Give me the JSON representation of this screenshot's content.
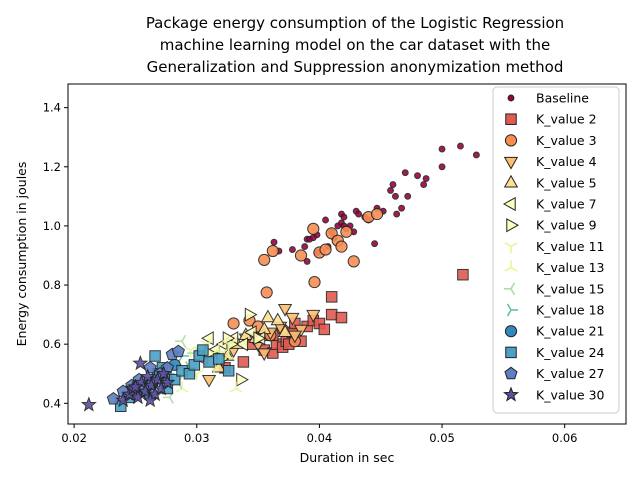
{
  "chart_data": {
    "type": "scatter",
    "title": [
      "Package energy consumption of the Logistic Regression",
      "machine learning model on the car dataset with the",
      "Generalization and Suppression anonymization method"
    ],
    "xlabel": "Duration in sec",
    "ylabel": "Energy consumption in joules",
    "xlim": [
      0.0195,
      0.065
    ],
    "ylim": [
      0.33,
      1.48
    ],
    "xticks": [
      0.02,
      0.03,
      0.04,
      0.05,
      0.06
    ],
    "xtick_labels": [
      "0.02",
      "0.03",
      "0.04",
      "0.05",
      "0.06"
    ],
    "yticks": [
      0.4,
      0.6,
      0.8,
      1.0,
      1.2,
      1.4
    ],
    "ytick_labels": [
      "0.4",
      "0.6",
      "0.8",
      "1.0",
      "1.2",
      "1.4"
    ],
    "grid": false,
    "legend_position": "upper-right",
    "series": [
      {
        "name": "Baseline",
        "marker": "circle-small",
        "color": "#9e0142",
        "points": [
          [
            0.0363,
            0.945
          ],
          [
            0.0367,
            0.915
          ],
          [
            0.0378,
            0.92
          ],
          [
            0.0388,
            0.93
          ],
          [
            0.039,
            0.955
          ],
          [
            0.0392,
            0.955
          ],
          [
            0.0395,
            0.96
          ],
          [
            0.0398,
            0.97
          ],
          [
            0.0405,
            1.02
          ],
          [
            0.0407,
            0.93
          ],
          [
            0.041,
            0.98
          ],
          [
            0.0412,
            0.96
          ],
          [
            0.0415,
            1.0
          ],
          [
            0.0418,
            1.01
          ],
          [
            0.0418,
            1.04
          ],
          [
            0.042,
            1.0
          ],
          [
            0.0422,
            0.99
          ],
          [
            0.0425,
            1.0
          ],
          [
            0.0428,
            0.98
          ],
          [
            0.043,
            1.05
          ],
          [
            0.0432,
            1.04
          ],
          [
            0.0437,
            1.03
          ],
          [
            0.0445,
            0.94
          ],
          [
            0.0447,
            1.06
          ],
          [
            0.0452,
            1.05
          ],
          [
            0.0458,
            1.12
          ],
          [
            0.046,
            1.14
          ],
          [
            0.0462,
            1.1
          ],
          [
            0.0463,
            1.04
          ],
          [
            0.0467,
            1.06
          ],
          [
            0.047,
            1.18
          ],
          [
            0.0472,
            1.1
          ],
          [
            0.048,
            1.17
          ],
          [
            0.0485,
            1.14
          ],
          [
            0.0487,
            1.16
          ],
          [
            0.05,
            1.2
          ],
          [
            0.05,
            1.26
          ],
          [
            0.0515,
            1.27
          ],
          [
            0.0528,
            1.24
          ],
          [
            0.042,
            1.03
          ],
          [
            0.044,
            1.02
          ],
          [
            0.039,
            0.88
          ],
          [
            0.0398,
            0.91
          ]
        ]
      },
      {
        "name": "K_value 2",
        "marker": "square",
        "color": "#e05a4f",
        "points": [
          [
            0.0323,
            0.52
          ],
          [
            0.0338,
            0.54
          ],
          [
            0.0345,
            0.6
          ],
          [
            0.035,
            0.62
          ],
          [
            0.0355,
            0.58
          ],
          [
            0.0358,
            0.63
          ],
          [
            0.0362,
            0.57
          ],
          [
            0.0365,
            0.6
          ],
          [
            0.037,
            0.59
          ],
          [
            0.0373,
            0.61
          ],
          [
            0.0378,
            0.64
          ],
          [
            0.038,
            0.67
          ],
          [
            0.0385,
            0.61
          ],
          [
            0.039,
            0.66
          ],
          [
            0.0395,
            0.68
          ],
          [
            0.04,
            0.67
          ],
          [
            0.0404,
            0.65
          ],
          [
            0.041,
            0.7
          ],
          [
            0.041,
            0.76
          ],
          [
            0.0418,
            0.69
          ],
          [
            0.0517,
            0.835
          ],
          [
            0.0362,
            0.63
          ],
          [
            0.0375,
            0.6
          ]
        ]
      },
      {
        "name": "K_value 3",
        "marker": "circle",
        "color": "#f88d52",
        "points": [
          [
            0.0355,
            0.885
          ],
          [
            0.0357,
            0.775
          ],
          [
            0.0362,
            0.915
          ],
          [
            0.0385,
            0.9
          ],
          [
            0.0395,
            0.99
          ],
          [
            0.0396,
            0.81
          ],
          [
            0.04,
            0.91
          ],
          [
            0.0405,
            0.92
          ],
          [
            0.041,
            0.975
          ],
          [
            0.0415,
            0.95
          ],
          [
            0.0418,
            0.93
          ],
          [
            0.0422,
            0.98
          ],
          [
            0.0428,
            0.88
          ],
          [
            0.044,
            1.03
          ],
          [
            0.0447,
            1.04
          ],
          [
            0.0343,
            0.68
          ],
          [
            0.035,
            0.66
          ],
          [
            0.036,
            0.63
          ],
          [
            0.037,
            0.65
          ],
          [
            0.038,
            0.61
          ],
          [
            0.033,
            0.67
          ]
        ]
      },
      {
        "name": "K_value 4",
        "marker": "triangle-down",
        "color": "#fdbe6f",
        "points": [
          [
            0.031,
            0.48
          ],
          [
            0.032,
            0.55
          ],
          [
            0.033,
            0.58
          ],
          [
            0.034,
            0.62
          ],
          [
            0.035,
            0.6
          ],
          [
            0.036,
            0.64
          ],
          [
            0.0368,
            0.66
          ],
          [
            0.0372,
            0.72
          ],
          [
            0.0378,
            0.69
          ],
          [
            0.0385,
            0.65
          ],
          [
            0.0395,
            0.7
          ],
          [
            0.038,
            0.63
          ],
          [
            0.0355,
            0.57
          ]
        ]
      },
      {
        "name": "K_value 5",
        "marker": "triangle-up",
        "color": "#fee090",
        "points": [
          [
            0.0318,
            0.52
          ],
          [
            0.0325,
            0.56
          ],
          [
            0.0333,
            0.6
          ],
          [
            0.034,
            0.63
          ],
          [
            0.0348,
            0.62
          ],
          [
            0.0355,
            0.65
          ],
          [
            0.0358,
            0.69
          ],
          [
            0.0366,
            0.68
          ],
          [
            0.0372,
            0.64
          ]
        ]
      },
      {
        "name": "K_value 7",
        "marker": "triangle-left",
        "color": "#ffffbf",
        "points": [
          [
            0.0305,
            0.55
          ],
          [
            0.0315,
            0.58
          ],
          [
            0.0322,
            0.6
          ],
          [
            0.033,
            0.62
          ],
          [
            0.0338,
            0.6
          ],
          [
            0.0345,
            0.64
          ],
          [
            0.0352,
            0.62
          ],
          [
            0.031,
            0.62
          ]
        ]
      },
      {
        "name": "K_value 9",
        "marker": "triangle-right",
        "color": "#ffffbf",
        "points": [
          [
            0.031,
            0.57
          ],
          [
            0.032,
            0.55
          ],
          [
            0.0328,
            0.6
          ],
          [
            0.0336,
            0.48
          ],
          [
            0.0343,
            0.7
          ],
          [
            0.035,
            0.62
          ],
          [
            0.0325,
            0.62
          ]
        ]
      },
      {
        "name": "K_value 11",
        "marker": "tri-down",
        "color": "#e6f598",
        "points": [
          [
            0.0295,
            0.58
          ],
          [
            0.0302,
            0.55
          ],
          [
            0.0308,
            0.6
          ],
          [
            0.0314,
            0.52
          ],
          [
            0.032,
            0.57
          ],
          [
            0.0326,
            0.6
          ],
          [
            0.03,
            0.5
          ]
        ]
      },
      {
        "name": "K_value 13",
        "marker": "tri-up",
        "color": "#e6f598",
        "points": [
          [
            0.0288,
            0.45
          ],
          [
            0.0296,
            0.5
          ],
          [
            0.0303,
            0.55
          ],
          [
            0.031,
            0.53
          ],
          [
            0.0318,
            0.58
          ],
          [
            0.0326,
            0.56
          ],
          [
            0.0332,
            0.45
          ]
        ]
      },
      {
        "name": "K_value 15",
        "marker": "tri-left",
        "color": "#abdda4",
        "points": [
          [
            0.0278,
            0.42
          ],
          [
            0.0285,
            0.47
          ],
          [
            0.0292,
            0.52
          ],
          [
            0.0298,
            0.57
          ],
          [
            0.0304,
            0.55
          ],
          [
            0.0288,
            0.61
          ]
        ]
      },
      {
        "name": "K_value 18",
        "marker": "tri-right",
        "color": "#66c2a5",
        "points": [
          [
            0.027,
            0.46
          ],
          [
            0.0276,
            0.5
          ],
          [
            0.0282,
            0.53
          ],
          [
            0.0288,
            0.56
          ],
          [
            0.0294,
            0.52
          ]
        ]
      },
      {
        "name": "K_value 21",
        "marker": "circle",
        "color": "#3288bd",
        "points": [
          [
            0.0258,
            0.44
          ],
          [
            0.0264,
            0.47
          ],
          [
            0.027,
            0.5
          ],
          [
            0.0276,
            0.48
          ],
          [
            0.0282,
            0.53
          ]
        ]
      },
      {
        "name": "K_value 24",
        "marker": "square",
        "color": "#4aa0c7",
        "points": [
          [
            0.0238,
            0.39
          ],
          [
            0.0245,
            0.42
          ],
          [
            0.0252,
            0.45
          ],
          [
            0.0258,
            0.44
          ],
          [
            0.0263,
            0.47
          ],
          [
            0.0268,
            0.5
          ],
          [
            0.0272,
            0.52
          ],
          [
            0.0266,
            0.56
          ],
          [
            0.0276,
            0.45
          ],
          [
            0.0282,
            0.48
          ],
          [
            0.0288,
            0.51
          ],
          [
            0.0294,
            0.5
          ],
          [
            0.0298,
            0.53
          ],
          [
            0.0302,
            0.56
          ],
          [
            0.0305,
            0.58
          ],
          [
            0.031,
            0.54
          ],
          [
            0.0318,
            0.55
          ],
          [
            0.0326,
            0.51
          ],
          [
            0.0262,
            0.43
          ]
        ]
      },
      {
        "name": "K_value 27",
        "marker": "pentagon",
        "color": "#5e7fc4",
        "points": [
          [
            0.0232,
            0.415
          ],
          [
            0.024,
            0.44
          ],
          [
            0.0247,
            0.46
          ],
          [
            0.0253,
            0.48
          ],
          [
            0.0258,
            0.45
          ],
          [
            0.0264,
            0.47
          ],
          [
            0.027,
            0.5
          ],
          [
            0.0276,
            0.52
          ],
          [
            0.028,
            0.565
          ],
          [
            0.0285,
            0.575
          ],
          [
            0.025,
            0.43
          ],
          [
            0.0262,
            0.52
          ]
        ]
      },
      {
        "name": "K_value 30",
        "marker": "star",
        "color": "#5e4fa2",
        "points": [
          [
            0.0212,
            0.395
          ],
          [
            0.024,
            0.41
          ],
          [
            0.0245,
            0.43
          ],
          [
            0.0248,
            0.45
          ],
          [
            0.0252,
            0.42
          ],
          [
            0.0255,
            0.47
          ],
          [
            0.0258,
            0.44
          ],
          [
            0.026,
            0.49
          ],
          [
            0.0263,
            0.46
          ],
          [
            0.0266,
            0.43
          ],
          [
            0.0268,
            0.48
          ],
          [
            0.0271,
            0.45
          ],
          [
            0.0273,
            0.5
          ],
          [
            0.0276,
            0.47
          ],
          [
            0.0254,
            0.535
          ],
          [
            0.0262,
            0.41
          ],
          [
            0.025,
            0.455
          ]
        ]
      }
    ]
  }
}
